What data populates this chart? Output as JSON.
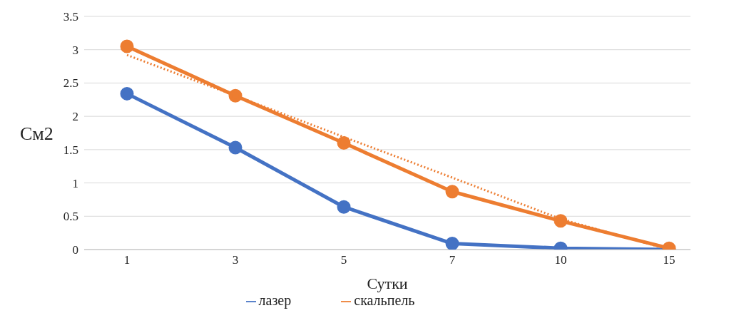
{
  "chart_data": {
    "type": "line",
    "categories": [
      "1",
      "3",
      "5",
      "7",
      "10",
      "15"
    ],
    "xlabel": "Сутки",
    "ylabel": "См2",
    "ylim": [
      0,
      3.5
    ],
    "yticks": [
      0,
      0.5,
      1,
      1.5,
      2,
      2.5,
      3,
      3.5
    ],
    "grid": "y",
    "legend": "bottom",
    "marker": "circle",
    "line_style": "solid",
    "series": [
      {
        "name": "лазер",
        "color": "#4472c4",
        "values": [
          2.34,
          1.53,
          0.64,
          0.09,
          0.02,
          0
        ]
      },
      {
        "name": "скальпель",
        "color": "#ed7d31",
        "values": [
          3.05,
          2.31,
          1.6,
          0.87,
          0.43,
          0.02
        ]
      },
      {
        "type": "line",
        "color": "#ed7d31",
        "line_style": "dotted",
        "marker": "none",
        "values": [
          2.92,
          2.31,
          1.69,
          1.08,
          0.46,
          0
        ]
      }
    ]
  }
}
